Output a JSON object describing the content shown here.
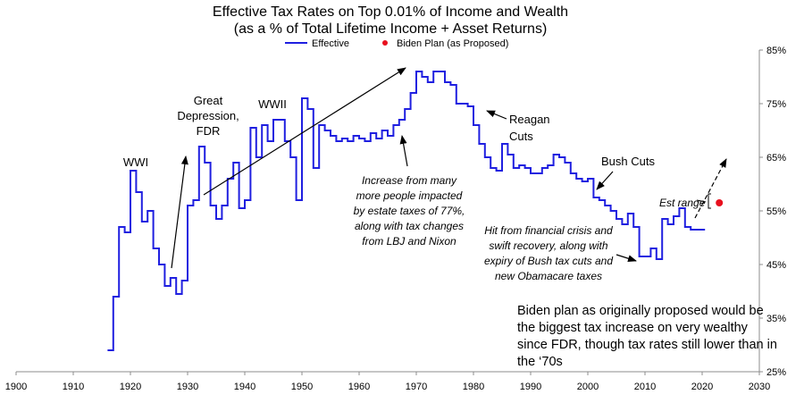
{
  "chart_data": {
    "type": "line",
    "title": "Effective Tax Rates on Top 0.01% of Income and Wealth",
    "subtitle": "(as a % of Total Lifetime Income + Asset Returns)",
    "xlabel": "",
    "ylabel": "",
    "xlim": [
      1900,
      2030
    ],
    "ylim": [
      25,
      85
    ],
    "x_ticks": [
      "1900",
      "1910",
      "1920",
      "1930",
      "1940",
      "1950",
      "1960",
      "1970",
      "1980",
      "1990",
      "2000",
      "2010",
      "2020",
      "2030"
    ],
    "y_ticks": [
      "25%",
      "35%",
      "45%",
      "55%",
      "65%",
      "75%",
      "85%"
    ],
    "y_axis_side": "right",
    "grid": false,
    "legend": {
      "position": "top",
      "entries": [
        "Effective",
        "Biden Plan (as Proposed)"
      ]
    },
    "colors": {
      "effective": "#1f1fe0",
      "biden": "#e8101e",
      "axis": "#8c8c8c"
    },
    "series": [
      {
        "name": "Effective",
        "style": "step",
        "x": [
          1916,
          1917,
          1918,
          1919,
          1920,
          1921,
          1922,
          1923,
          1924,
          1925,
          1926,
          1927,
          1928,
          1929,
          1930,
          1931,
          1932,
          1933,
          1934,
          1935,
          1936,
          1937,
          1938,
          1939,
          1940,
          1941,
          1942,
          1943,
          1944,
          1945,
          1946,
          1947,
          1948,
          1949,
          1950,
          1951,
          1952,
          1953,
          1954,
          1955,
          1956,
          1957,
          1958,
          1959,
          1960,
          1961,
          1962,
          1963,
          1964,
          1965,
          1966,
          1967,
          1968,
          1969,
          1970,
          1971,
          1972,
          1973,
          1974,
          1975,
          1976,
          1977,
          1978,
          1979,
          1980,
          1981,
          1982,
          1983,
          1984,
          1985,
          1986,
          1987,
          1988,
          1989,
          1990,
          1991,
          1992,
          1993,
          1994,
          1995,
          1996,
          1997,
          1998,
          1999,
          2000,
          2001,
          2002,
          2003,
          2004,
          2005,
          2006,
          2007,
          2008,
          2009,
          2010,
          2011,
          2012,
          2013,
          2014,
          2015,
          2016,
          2017,
          2018,
          2019,
          2020
        ],
        "values": [
          29,
          39,
          52,
          51,
          62.5,
          58.5,
          53,
          55,
          48,
          45,
          41,
          42.5,
          39.5,
          42,
          56,
          57,
          67,
          64,
          56,
          53.5,
          56,
          61,
          64,
          55.5,
          57,
          70.5,
          65,
          71,
          68,
          72,
          72,
          68,
          65,
          57,
          76,
          74,
          63,
          71,
          70,
          69,
          68,
          68.5,
          68,
          69,
          68.5,
          68,
          69.5,
          68.5,
          70,
          69,
          71,
          72,
          74,
          77,
          81,
          80,
          79,
          81,
          81,
          79,
          78.5,
          75,
          75,
          74.5,
          71,
          67.5,
          65,
          63,
          62.5,
          67.5,
          65.5,
          63,
          63.5,
          63,
          62,
          62,
          63,
          63.5,
          65.5,
          65,
          64,
          62,
          61,
          60.5,
          61,
          57.5,
          57,
          56,
          55,
          53.5,
          52.5,
          54.5,
          52,
          46.5,
          46.5,
          48,
          46,
          53.5,
          52.5,
          54,
          55.5,
          52,
          51.5,
          51.5,
          51.5
        ]
      },
      {
        "name": "Biden Plan (as Proposed)",
        "style": "point",
        "x": [
          2023
        ],
        "values": [
          56.5
        ]
      }
    ],
    "annotations": {
      "wwi": "WWI",
      "great_depression": [
        "Great",
        "Depression,",
        "FDR"
      ],
      "wwii": "WWII",
      "reagan": [
        "Reagan",
        "Cuts"
      ],
      "bush": "Bush Cuts",
      "est_range": "Est range",
      "increase": [
        "Increase from many",
        "more people impacted",
        "by estate taxes of 77%,",
        "along with tax changes",
        "from LBJ and Nixon"
      ],
      "crisis": [
        "Hit from financial crisis and",
        "swift recovery, along with",
        "expiry of Bush tax cuts and",
        "new Obamacare taxes"
      ],
      "biden_note": [
        "Biden plan as originally proposed would be",
        "the biggest tax increase on very wealthy",
        "since FDR, though tax rates still lower than in",
        "the ‘70s"
      ]
    }
  }
}
